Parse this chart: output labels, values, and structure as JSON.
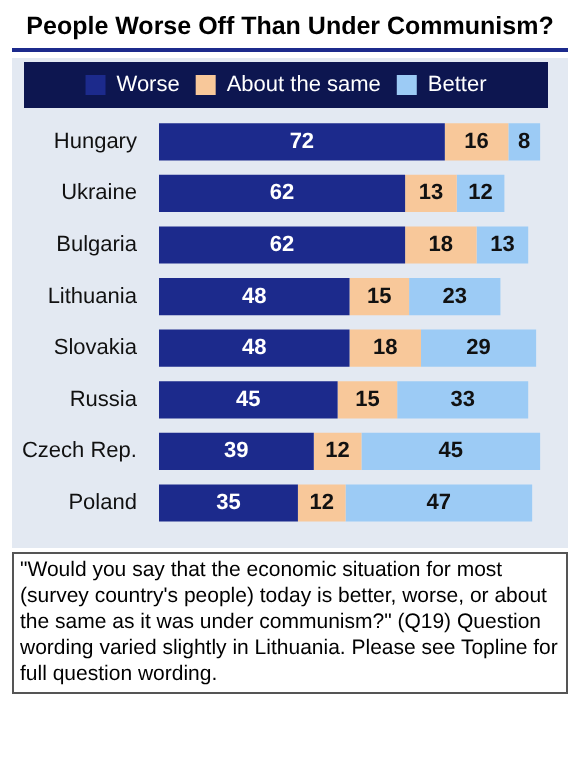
{
  "chart_data": {
    "type": "bar",
    "title": "People Worse Off Than Under Communism?",
    "orientation": "horizontal",
    "stacked": true,
    "data_labels": true,
    "legend": "top",
    "tick_labels": "y",
    "categories": [
      "Hungary",
      "Ukraine",
      "Bulgaria",
      "Lithuania",
      "Slovakia",
      "Russia",
      "Czech Rep.",
      "Poland"
    ],
    "series": [
      {
        "name": "Worse",
        "color": "#1c2a8c",
        "values": [
          72,
          62,
          62,
          48,
          48,
          45,
          39,
          35
        ]
      },
      {
        "name": "About the same",
        "color": "#f8c89a",
        "values": [
          16,
          13,
          18,
          15,
          18,
          15,
          12,
          12
        ]
      },
      {
        "name": "Better",
        "color": "#9ccbf5",
        "values": [
          8,
          12,
          13,
          23,
          29,
          33,
          45,
          47
        ]
      }
    ],
    "annotations": [
      "\"Would you say that the economic situation for most (survey country's people) today is better, worse, or about the same as it was under communism?\" (Q19) Question wording varied slightly in Lithuania. Please see Topline for full question wording."
    ]
  }
}
